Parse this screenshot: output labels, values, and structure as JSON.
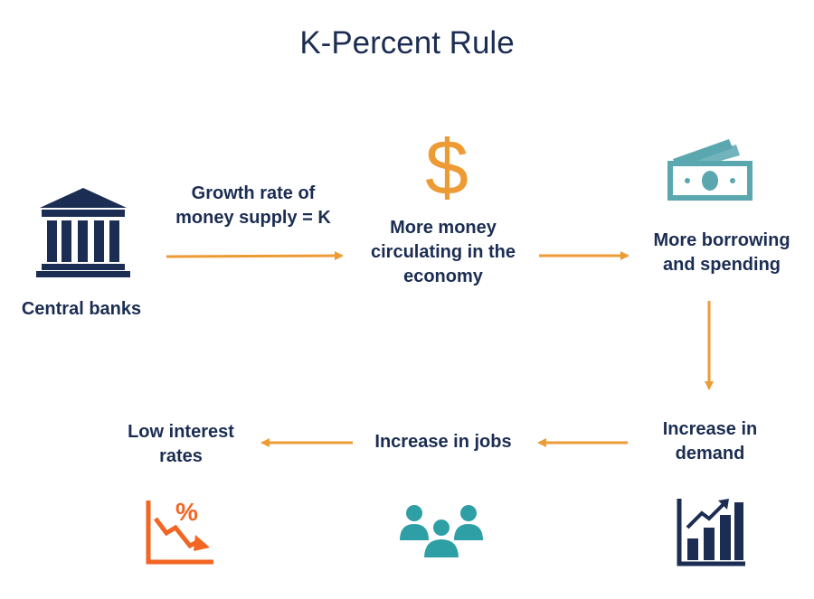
{
  "title": "K-Percent Rule",
  "colors": {
    "navy": "#1b2d52",
    "arrow": "#ed9b35",
    "teal": "#2f9fa6",
    "bill": "#5aa7b0",
    "dollar": "#ed9b35",
    "interest": "#f26522"
  },
  "nodes": {
    "central_banks": {
      "label": "Central banks",
      "icon": "bank-icon"
    },
    "growth_rate": {
      "line1": "Growth rate of",
      "line2": "money supply = K"
    },
    "more_money": {
      "line1": "More money",
      "line2": "circulating in the",
      "line3": "economy",
      "icon": "dollar-icon"
    },
    "borrowing": {
      "line1": "More borrowing",
      "line2": "and spending",
      "icon": "cash-icon"
    },
    "demand": {
      "line1": "Increase in",
      "line2": "demand",
      "icon": "growth-chart-icon"
    },
    "jobs": {
      "label": "Increase in jobs",
      "icon": "people-icon"
    },
    "interest": {
      "line1": "Low interest",
      "line2": "rates",
      "icon": "falling-percent-icon",
      "symbol": "%"
    }
  },
  "dollar_symbol": "$"
}
